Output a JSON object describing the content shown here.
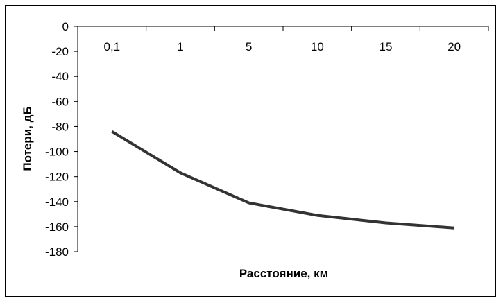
{
  "chart_data": {
    "type": "line",
    "categories": [
      "0,1",
      "1",
      "5",
      "10",
      "15",
      "20"
    ],
    "series": [
      {
        "values": [
          -84,
          -117,
          -141,
          -151,
          -157,
          -161
        ]
      }
    ],
    "xlabel": "Расстояние, км",
    "ylabel": "Потери, дБ",
    "ylim": [
      -180,
      0
    ],
    "yticks": [
      0,
      -20,
      -40,
      -60,
      -80,
      -100,
      -120,
      -140,
      -160,
      -180
    ],
    "grid": false,
    "legend": "none",
    "line_color": "#333333"
  }
}
